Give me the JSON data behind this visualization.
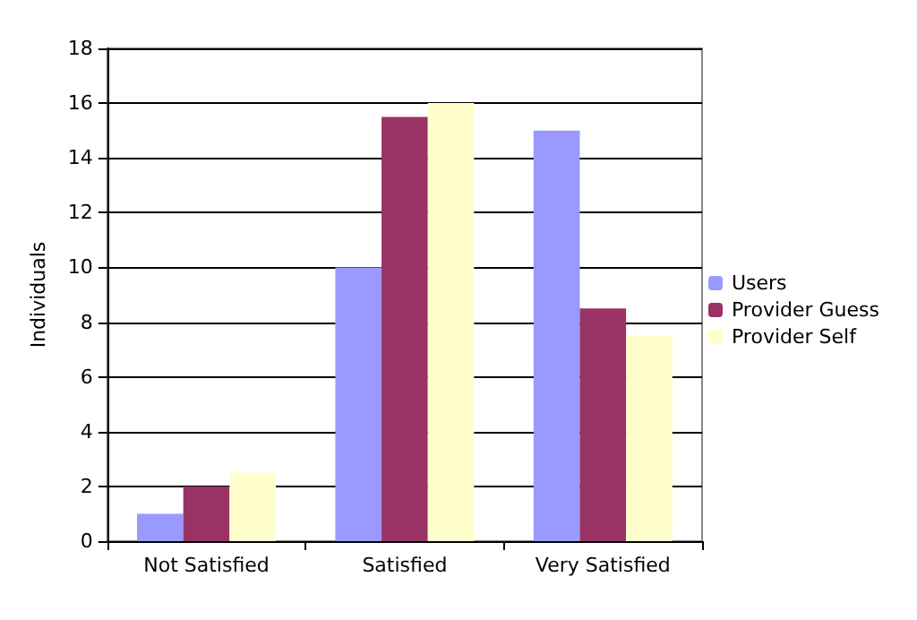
{
  "chart_data": {
    "type": "bar",
    "ylabel": "Individuals",
    "categories": [
      "Not Satisfied",
      "Satisfied",
      "Very Satisfied"
    ],
    "series": [
      {
        "name": "Users",
        "color": "#9999ff",
        "values": [
          1,
          10,
          15
        ]
      },
      {
        "name": "Provider Guess",
        "color": "#993366",
        "values": [
          2,
          15.5,
          8.5
        ]
      },
      {
        "name": "Provider Self",
        "color": "#ffffcc",
        "values": [
          2.5,
          16,
          7.5
        ]
      }
    ],
    "ylim": [
      0,
      18
    ],
    "yticks": [
      0,
      2,
      4,
      6,
      8,
      10,
      12,
      14,
      16,
      18
    ],
    "grid": "y",
    "legend": "right"
  }
}
